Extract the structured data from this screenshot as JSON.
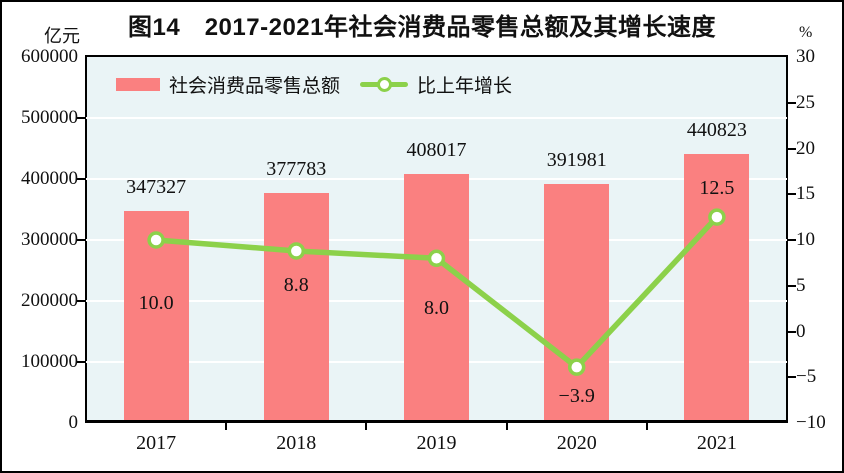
{
  "title": "图14　2017-2021年社会消费品零售总额及其增长速度",
  "axes": {
    "left_unit": "亿元",
    "right_unit": "%"
  },
  "legend": {
    "bar_label": "社会消费品零售总额",
    "line_label": "比上年增长"
  },
  "colors": {
    "bar": "#fa8080",
    "line": "#8cd14a",
    "marker_fill": "#ffffff",
    "plot_background": "#eaf4f6",
    "grid": "#ffffff",
    "axis": "#000000",
    "text": "#111111"
  },
  "chart_data": {
    "type": "bar+line",
    "title": "图14　2017-2021年社会消费品零售总额及其增长速度",
    "categories": [
      "2017",
      "2018",
      "2019",
      "2020",
      "2021"
    ],
    "series": [
      {
        "name": "社会消费品零售总额",
        "type": "bar",
        "axis": "left",
        "unit": "亿元",
        "values": [
          347327,
          377783,
          408017,
          391981,
          440823
        ],
        "labels": [
          "347327",
          "377783",
          "408017",
          "391981",
          "440823"
        ],
        "color": "#fa8080"
      },
      {
        "name": "比上年增长",
        "type": "line",
        "axis": "right",
        "unit": "%",
        "values": [
          10.0,
          8.8,
          8.0,
          -3.9,
          12.5
        ],
        "labels": [
          "10.0",
          "8.8",
          "8.0",
          "−3.9",
          "12.5"
        ],
        "color": "#8cd14a",
        "marker": "circle-white-fill-green-ring"
      }
    ],
    "left_axis": {
      "unit": "亿元",
      "min": 0,
      "max": 600000,
      "tick_step": 100000,
      "tick_labels": [
        "600000",
        "500000",
        "400000",
        "300000",
        "200000",
        "100000",
        "0"
      ]
    },
    "right_axis": {
      "unit": "%",
      "min": -10,
      "max": 30,
      "tick_step": 5,
      "tick_labels": [
        "30",
        "25",
        "20",
        "15",
        "10",
        "5",
        "0",
        "−5",
        "−10"
      ]
    },
    "grid": {
      "horizontal": true,
      "color": "#ffffff",
      "at": "left-axis-ticks"
    },
    "legend_position": "top-left-inside"
  }
}
